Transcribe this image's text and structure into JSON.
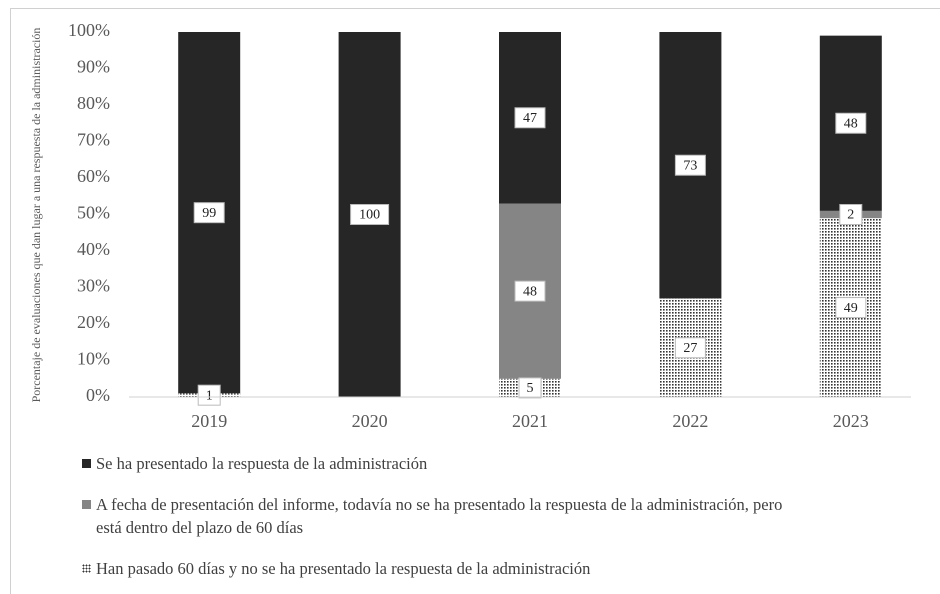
{
  "chart_data": {
    "type": "stacked_bar",
    "y_label": "Porcentaje de evaluaciones que dan lugar a una respuesta de la administración",
    "categories": [
      "2019",
      "2020",
      "2021",
      "2022",
      "2023"
    ],
    "series": [
      {
        "name": "Se ha presentado la respuesta de la administración",
        "color": "#262626",
        "values": [
          99,
          100,
          47,
          73,
          48
        ]
      },
      {
        "name": "A fecha de presentación del informe, todavía no se ha presentado la respuesta de la administración, pero está dentro del plazo de 60 días",
        "color": "#858585",
        "values": [
          0,
          0,
          48,
          0,
          2
        ]
      },
      {
        "name": "Han pasado 60 días y no se ha presentado la respuesta de la administración",
        "color": "#333333",
        "pattern": "dots",
        "values": [
          1,
          0,
          5,
          27,
          49
        ]
      }
    ],
    "stack_order": "last_series_at_bottom",
    "ylim": [
      0,
      100
    ],
    "yticks": [
      {
        "value": 0,
        "label": "0%"
      },
      {
        "value": 10,
        "label": "10%"
      },
      {
        "value": 20,
        "label": "20%"
      },
      {
        "value": 30,
        "label": "30%"
      },
      {
        "value": 40,
        "label": "40%"
      },
      {
        "value": 50,
        "label": "50%"
      },
      {
        "value": 60,
        "label": "60%"
      },
      {
        "value": 70,
        "label": "70%"
      },
      {
        "value": 80,
        "label": "80%"
      },
      {
        "value": 90,
        "label": "90%"
      },
      {
        "value": 100,
        "label": "100%"
      }
    ],
    "grid": false
  }
}
